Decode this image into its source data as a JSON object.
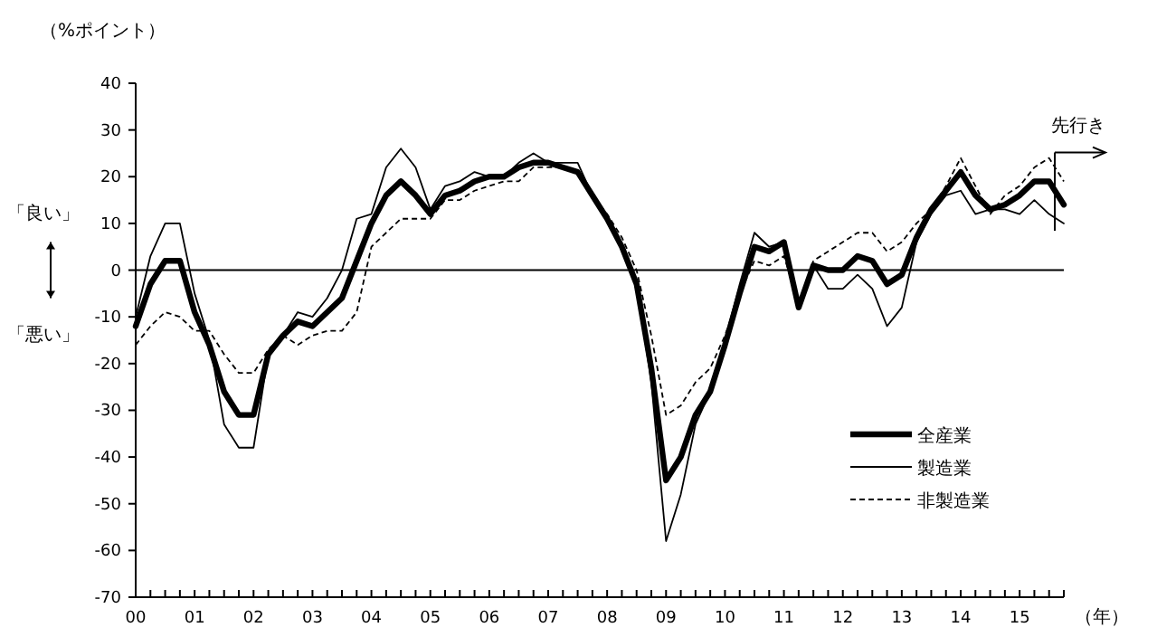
{
  "chart_data": {
    "type": "line",
    "ylabel": "（%ポイント）",
    "xlabel": "（年）",
    "annotations": [
      "「良い」",
      "「悪い」",
      "先行き"
    ],
    "x": [
      0,
      0.25,
      0.5,
      0.75,
      1,
      1.25,
      1.5,
      1.75,
      2,
      2.25,
      2.5,
      2.75,
      3,
      3.25,
      3.5,
      3.75,
      4,
      4.25,
      4.5,
      4.75,
      5,
      5.25,
      5.5,
      5.75,
      6,
      6.25,
      6.5,
      6.75,
      7,
      7.25,
      7.5,
      7.75,
      8,
      8.25,
      8.5,
      8.75,
      9,
      9.25,
      9.5,
      9.75,
      10,
      10.25,
      10.5,
      10.75,
      11,
      11.25,
      11.5,
      11.75,
      12,
      12.25,
      12.5,
      12.75,
      13,
      13.25,
      13.5,
      13.75,
      14,
      14.25,
      14.5,
      14.75,
      15,
      15.25,
      15.5,
      15.75
    ],
    "series": [
      {
        "name": "全産業",
        "color": "#000000",
        "line_style": "solid",
        "values": [
          -12,
          -3,
          2,
          2,
          -9,
          -16,
          -26,
          -31,
          -31,
          -18,
          -14,
          -11,
          -12,
          -9,
          -6,
          2,
          10,
          16,
          19,
          16,
          12,
          16,
          17,
          19,
          20,
          20,
          22,
          23,
          23,
          22,
          21,
          16,
          11,
          5,
          -3,
          -21,
          -45,
          -40,
          -31,
          -26,
          -16,
          -5,
          5,
          4,
          6,
          -8,
          1,
          0,
          0,
          3,
          2,
          -3,
          -1,
          7,
          13,
          17,
          21,
          16,
          13,
          14,
          16,
          19,
          19,
          14
        ]
      },
      {
        "name": "製造業",
        "color": "#000000",
        "line_style": "solid",
        "values": [
          -10,
          3,
          10,
          10,
          -5,
          -15,
          -33,
          -38,
          -38,
          -18,
          -14,
          -9,
          -10,
          -6,
          0,
          11,
          12,
          22,
          26,
          22,
          13,
          18,
          19,
          21,
          20,
          20,
          23,
          25,
          23,
          23,
          23,
          16,
          11,
          5,
          -3,
          -24,
          -58,
          -48,
          -33,
          -26,
          -15,
          -3,
          8,
          5,
          6,
          -8,
          1,
          -4,
          -4,
          -1,
          -4,
          -12,
          -8,
          6,
          12,
          16,
          17,
          12,
          13,
          13,
          12,
          15,
          12,
          10
        ]
      },
      {
        "name": "非製造業",
        "color": "#000000",
        "line_style": "dashed",
        "values": [
          -16,
          -12,
          -9,
          -10,
          -13,
          -13,
          -18,
          -22,
          -22,
          -17,
          -14,
          -16,
          -14,
          -13,
          -13,
          -9,
          5,
          8,
          11,
          11,
          11,
          15,
          15,
          17,
          18,
          19,
          19,
          22,
          22,
          22,
          21,
          16,
          12,
          7,
          0,
          -14,
          -31,
          -29,
          -24,
          -21,
          -14,
          -5,
          2,
          1,
          3,
          -7,
          2,
          4,
          6,
          8,
          8,
          4,
          6,
          10,
          13,
          18,
          24,
          18,
          12,
          16,
          18,
          22,
          24,
          19
        ]
      }
    ],
    "xlim": [
      0,
      15.75
    ],
    "xticks": [
      {
        "value": 0,
        "label": "00"
      },
      {
        "value": 0.25,
        "label": null
      },
      {
        "value": 0.5,
        "label": null
      },
      {
        "value": 0.75,
        "label": null
      },
      {
        "value": 1,
        "label": "01"
      },
      {
        "value": 1.25,
        "label": null
      },
      {
        "value": 1.5,
        "label": null
      },
      {
        "value": 1.75,
        "label": null
      },
      {
        "value": 2,
        "label": "02"
      },
      {
        "value": 2.25,
        "label": null
      },
      {
        "value": 2.5,
        "label": null
      },
      {
        "value": 2.75,
        "label": null
      },
      {
        "value": 3,
        "label": "03"
      },
      {
        "value": 3.25,
        "label": null
      },
      {
        "value": 3.5,
        "label": null
      },
      {
        "value": 3.75,
        "label": null
      },
      {
        "value": 4,
        "label": "04"
      },
      {
        "value": 4.25,
        "label": null
      },
      {
        "value": 4.5,
        "label": null
      },
      {
        "value": 4.75,
        "label": null
      },
      {
        "value": 5,
        "label": "05"
      },
      {
        "value": 5.25,
        "label": null
      },
      {
        "value": 5.5,
        "label": null
      },
      {
        "value": 5.75,
        "label": null
      },
      {
        "value": 6,
        "label": "06"
      },
      {
        "value": 6.25,
        "label": null
      },
      {
        "value": 6.5,
        "label": null
      },
      {
        "value": 6.75,
        "label": null
      },
      {
        "value": 7,
        "label": "07"
      },
      {
        "value": 7.25,
        "label": null
      },
      {
        "value": 7.5,
        "label": null
      },
      {
        "value": 7.75,
        "label": null
      },
      {
        "value": 8,
        "label": "08"
      },
      {
        "value": 8.25,
        "label": null
      },
      {
        "value": 8.5,
        "label": null
      },
      {
        "value": 8.75,
        "label": null
      },
      {
        "value": 9,
        "label": "09"
      },
      {
        "value": 9.25,
        "label": null
      },
      {
        "value": 9.5,
        "label": null
      },
      {
        "value": 9.75,
        "label": null
      },
      {
        "value": 10,
        "label": "10"
      },
      {
        "value": 10.25,
        "label": null
      },
      {
        "value": 10.5,
        "label": null
      },
      {
        "value": 10.75,
        "label": null
      },
      {
        "value": 11,
        "label": "11"
      },
      {
        "value": 11.25,
        "label": null
      },
      {
        "value": 11.5,
        "label": null
      },
      {
        "value": 11.75,
        "label": null
      },
      {
        "value": 12,
        "label": "12"
      },
      {
        "value": 12.25,
        "label": null
      },
      {
        "value": 12.5,
        "label": null
      },
      {
        "value": 12.75,
        "label": null
      },
      {
        "value": 13,
        "label": "13"
      },
      {
        "value": 13.25,
        "label": null
      },
      {
        "value": 13.5,
        "label": null
      },
      {
        "value": 13.75,
        "label": null
      },
      {
        "value": 14,
        "label": "14"
      },
      {
        "value": 14.25,
        "label": null
      },
      {
        "value": 14.5,
        "label": null
      },
      {
        "value": 14.75,
        "label": null
      },
      {
        "value": 15,
        "label": "15"
      },
      {
        "value": 15.25,
        "label": null
      },
      {
        "value": 15.5,
        "label": null
      },
      {
        "value": 15.75,
        "label": null
      }
    ],
    "ylim": [
      -70,
      40
    ],
    "yticks": [
      -70,
      -60,
      -50,
      -40,
      -30,
      -20,
      -10,
      0,
      10,
      20,
      30,
      40
    ],
    "ref_lines": [
      {
        "axis": "y",
        "value": 0,
        "color": "#000000"
      }
    ],
    "grid": false,
    "legend": "right"
  }
}
